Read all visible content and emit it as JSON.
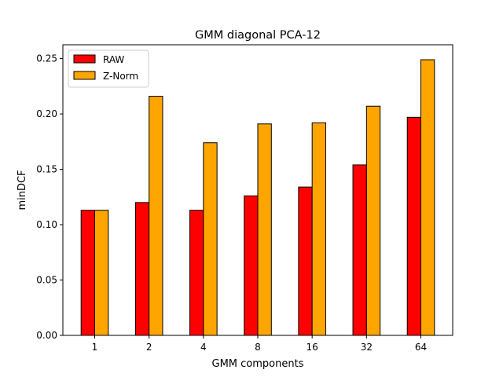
{
  "chart_data": {
    "type": "bar",
    "title": "GMM diagonal PCA-12",
    "xlabel": "GMM components",
    "ylabel": "minDCF",
    "categories": [
      "1",
      "2",
      "4",
      "8",
      "16",
      "32",
      "64"
    ],
    "series": [
      {
        "name": "RAW",
        "color": "#ff0000",
        "values": [
          0.113,
          0.12,
          0.113,
          0.126,
          0.134,
          0.154,
          0.197
        ]
      },
      {
        "name": "Z-Norm",
        "color": "#ffa500",
        "values": [
          0.113,
          0.216,
          0.174,
          0.191,
          0.192,
          0.207,
          0.249
        ]
      }
    ],
    "ylim": [
      0,
      0.2625
    ],
    "yticks": [
      "0.00",
      "0.05",
      "0.10",
      "0.15",
      "0.20",
      "0.25"
    ],
    "legend_position": "top-left",
    "grid": false
  }
}
